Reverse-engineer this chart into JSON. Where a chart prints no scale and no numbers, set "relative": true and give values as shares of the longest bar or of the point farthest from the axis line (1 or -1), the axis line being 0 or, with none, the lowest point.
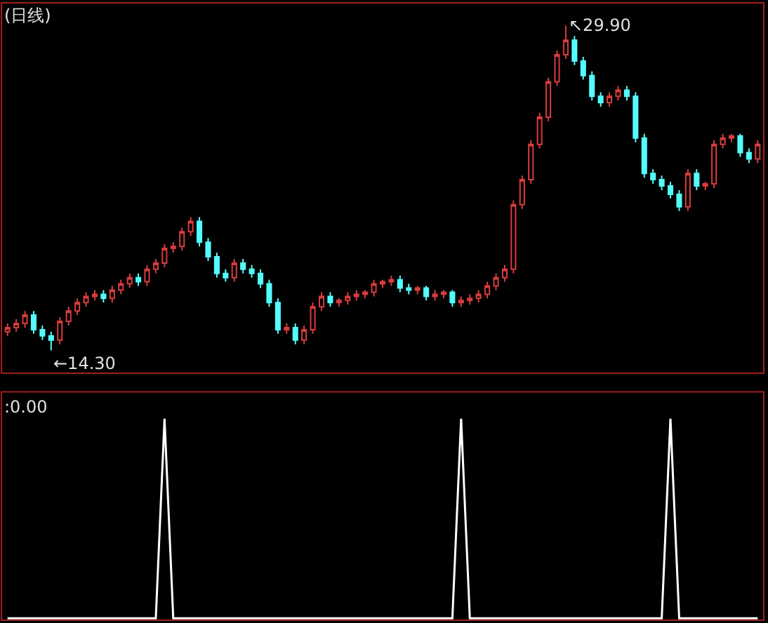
{
  "chart_data": [
    {
      "type": "candlestick",
      "title": "(日线)",
      "categories": [
        null,
        null,
        null,
        null,
        null,
        null,
        null,
        null,
        null,
        null,
        null,
        null,
        null,
        null,
        null,
        null,
        null,
        null,
        null,
        null,
        null,
        null,
        null,
        null,
        null,
        null,
        null,
        null,
        null,
        null,
        null,
        null,
        null,
        null,
        null,
        null,
        null,
        null,
        null,
        null,
        null,
        null,
        null,
        null,
        null,
        null,
        null,
        null,
        null,
        null,
        null,
        null,
        null,
        null,
        null,
        null,
        null,
        null,
        null,
        null,
        null,
        null,
        null,
        null,
        null,
        null,
        null,
        null,
        null,
        null,
        null,
        null,
        null,
        null,
        null,
        null,
        null,
        null,
        null,
        null,
        null,
        null,
        null,
        null,
        null,
        null,
        null
      ],
      "ohlc": [
        [
          15.2,
          15.6,
          15.0,
          15.4
        ],
        [
          15.4,
          15.8,
          15.2,
          15.6
        ],
        [
          15.6,
          16.2,
          15.4,
          16.0
        ],
        [
          16.0,
          16.2,
          15.1,
          15.3
        ],
        [
          15.3,
          15.5,
          14.8,
          15.0
        ],
        [
          15.0,
          15.2,
          14.3,
          14.8
        ],
        [
          14.8,
          15.9,
          14.6,
          15.7
        ],
        [
          15.7,
          16.4,
          15.5,
          16.2
        ],
        [
          16.2,
          16.8,
          16.0,
          16.6
        ],
        [
          16.6,
          17.1,
          16.4,
          16.9
        ],
        [
          16.9,
          17.2,
          16.7,
          17.0
        ],
        [
          17.0,
          17.2,
          16.6,
          16.8
        ],
        [
          16.8,
          17.4,
          16.6,
          17.2
        ],
        [
          17.2,
          17.7,
          17.0,
          17.5
        ],
        [
          17.5,
          18.0,
          17.3,
          17.8
        ],
        [
          17.8,
          18.0,
          17.4,
          17.6
        ],
        [
          17.6,
          18.4,
          17.4,
          18.2
        ],
        [
          18.2,
          18.7,
          18.0,
          18.5
        ],
        [
          18.5,
          19.4,
          18.3,
          19.2
        ],
        [
          19.2,
          19.5,
          19.0,
          19.3
        ],
        [
          19.3,
          20.2,
          19.1,
          20.0
        ],
        [
          20.0,
          20.7,
          19.8,
          20.5
        ],
        [
          20.5,
          20.7,
          19.3,
          19.5
        ],
        [
          19.5,
          19.7,
          18.6,
          18.8
        ],
        [
          18.8,
          19.0,
          17.8,
          18.0
        ],
        [
          18.0,
          18.2,
          17.6,
          17.8
        ],
        [
          17.8,
          18.7,
          17.6,
          18.5
        ],
        [
          18.5,
          18.7,
          18.0,
          18.2
        ],
        [
          18.2,
          18.4,
          17.8,
          18.0
        ],
        [
          18.0,
          18.2,
          17.3,
          17.5
        ],
        [
          17.5,
          17.7,
          16.4,
          16.6
        ],
        [
          16.6,
          16.8,
          15.1,
          15.3
        ],
        [
          15.3,
          15.6,
          15.1,
          15.4
        ],
        [
          15.4,
          15.6,
          14.6,
          14.8
        ],
        [
          14.8,
          15.5,
          14.6,
          15.3
        ],
        [
          15.3,
          16.6,
          15.1,
          16.4
        ],
        [
          16.4,
          17.1,
          16.2,
          16.9
        ],
        [
          16.9,
          17.1,
          16.4,
          16.6
        ],
        [
          16.6,
          16.8,
          16.4,
          16.7
        ],
        [
          16.7,
          17.1,
          16.5,
          16.9
        ],
        [
          16.9,
          17.2,
          16.7,
          17.0
        ],
        [
          17.0,
          17.2,
          16.8,
          17.1
        ],
        [
          17.1,
          17.7,
          16.9,
          17.5
        ],
        [
          17.5,
          17.7,
          17.3,
          17.6
        ],
        [
          17.6,
          17.9,
          17.4,
          17.7
        ],
        [
          17.7,
          17.9,
          17.1,
          17.3
        ],
        [
          17.3,
          17.5,
          17.0,
          17.2
        ],
        [
          17.2,
          17.4,
          17.0,
          17.3
        ],
        [
          17.3,
          17.4,
          16.7,
          16.9
        ],
        [
          16.9,
          17.2,
          16.7,
          17.0
        ],
        [
          17.0,
          17.2,
          16.8,
          17.1
        ],
        [
          17.1,
          17.2,
          16.4,
          16.6
        ],
        [
          16.6,
          16.9,
          16.4,
          16.7
        ],
        [
          16.7,
          17.0,
          16.5,
          16.8
        ],
        [
          16.8,
          17.2,
          16.6,
          17.0
        ],
        [
          17.0,
          17.6,
          16.8,
          17.4
        ],
        [
          17.4,
          18.0,
          17.2,
          17.8
        ],
        [
          17.8,
          18.4,
          17.6,
          18.2
        ],
        [
          18.2,
          21.5,
          18.0,
          21.3
        ],
        [
          21.3,
          22.7,
          21.1,
          22.5
        ],
        [
          22.5,
          24.4,
          22.3,
          24.2
        ],
        [
          24.2,
          25.7,
          24.0,
          25.5
        ],
        [
          25.5,
          27.4,
          25.3,
          27.2
        ],
        [
          27.2,
          28.7,
          27.0,
          28.5
        ],
        [
          28.5,
          29.9,
          28.3,
          29.2
        ],
        [
          29.2,
          29.4,
          28.0,
          28.2
        ],
        [
          28.2,
          28.4,
          27.3,
          27.5
        ],
        [
          27.5,
          27.7,
          26.3,
          26.5
        ],
        [
          26.5,
          26.7,
          26.0,
          26.2
        ],
        [
          26.2,
          26.7,
          26.0,
          26.5
        ],
        [
          26.5,
          27.0,
          26.3,
          26.8
        ],
        [
          26.8,
          27.0,
          26.3,
          26.5
        ],
        [
          26.5,
          26.7,
          24.3,
          24.5
        ],
        [
          24.5,
          24.7,
          22.6,
          22.8
        ],
        [
          22.8,
          23.0,
          22.3,
          22.5
        ],
        [
          22.5,
          22.7,
          22.0,
          22.2
        ],
        [
          22.2,
          22.4,
          21.6,
          21.8
        ],
        [
          21.8,
          22.0,
          21.0,
          21.2
        ],
        [
          21.2,
          23.0,
          21.0,
          22.8
        ],
        [
          22.8,
          23.0,
          22.0,
          22.2
        ],
        [
          22.2,
          22.4,
          22.0,
          22.3
        ],
        [
          22.3,
          24.4,
          22.1,
          24.2
        ],
        [
          24.2,
          24.7,
          24.0,
          24.5
        ],
        [
          24.5,
          24.7,
          24.3,
          24.6
        ],
        [
          24.6,
          24.7,
          23.6,
          23.8
        ],
        [
          23.8,
          24.0,
          23.3,
          23.5
        ],
        [
          23.5,
          24.4,
          23.3,
          24.2
        ]
      ],
      "colors": [
        "#d83c3c",
        "#d83c3c",
        "#d83c3c",
        "#54fcfc",
        "#54fcfc",
        "#54fcfc",
        "#d83c3c",
        "#d83c3c",
        "#d83c3c",
        "#d83c3c",
        "#d83c3c",
        "#54fcfc",
        "#d83c3c",
        "#d83c3c",
        "#d83c3c",
        "#54fcfc",
        "#d83c3c",
        "#d83c3c",
        "#d83c3c",
        "#d83c3c",
        "#d83c3c",
        "#d83c3c",
        "#54fcfc",
        "#54fcfc",
        "#54fcfc",
        "#54fcfc",
        "#d83c3c",
        "#54fcfc",
        "#54fcfc",
        "#54fcfc",
        "#54fcfc",
        "#54fcfc",
        "#d83c3c",
        "#54fcfc",
        "#d83c3c",
        "#d83c3c",
        "#d83c3c",
        "#54fcfc",
        "#d83c3c",
        "#d83c3c",
        "#d83c3c",
        "#d83c3c",
        "#d83c3c",
        "#d83c3c",
        "#d83c3c",
        "#54fcfc",
        "#54fcfc",
        "#d83c3c",
        "#54fcfc",
        "#d83c3c",
        "#d83c3c",
        "#54fcfc",
        "#d83c3c",
        "#d83c3c",
        "#d83c3c",
        "#d83c3c",
        "#d83c3c",
        "#d83c3c",
        "#d83c3c",
        "#d83c3c",
        "#d83c3c",
        "#d83c3c",
        "#d83c3c",
        "#d83c3c",
        "#d83c3c",
        "#54fcfc",
        "#54fcfc",
        "#54fcfc",
        "#54fcfc",
        "#d83c3c",
        "#d83c3c",
        "#54fcfc",
        "#54fcfc",
        "#54fcfc",
        "#54fcfc",
        "#54fcfc",
        "#54fcfc",
        "#54fcfc",
        "#d83c3c",
        "#54fcfc",
        "#d83c3c",
        "#d83c3c",
        "#d83c3c",
        "#d83c3c",
        "#54fcfc",
        "#54fcfc",
        "#d83c3c"
      ],
      "annotations": [
        "←14.30",
        "↖29.90"
      ],
      "tick_labels": false
    },
    {
      "type": "line",
      "title": ":0.00",
      "relative": true,
      "color": "#ffffff",
      "categories": [
        null,
        null,
        null,
        null,
        null,
        null,
        null,
        null,
        null,
        null,
        null,
        null,
        null,
        null,
        null,
        null,
        null,
        null,
        null,
        null,
        null,
        null,
        null,
        null,
        null,
        null,
        null,
        null,
        null,
        null,
        null,
        null,
        null,
        null,
        null,
        null,
        null,
        null,
        null,
        null,
        null,
        null,
        null,
        null,
        null,
        null,
        null,
        null,
        null,
        null,
        null,
        null,
        null,
        null,
        null,
        null,
        null,
        null,
        null,
        null,
        null,
        null,
        null,
        null,
        null,
        null,
        null,
        null,
        null,
        null,
        null,
        null,
        null,
        null,
        null,
        null,
        null,
        null,
        null,
        null,
        null,
        null,
        null,
        null,
        null,
        null,
        null
      ],
      "values": [
        0,
        0,
        0,
        0,
        0,
        0,
        0,
        0,
        0,
        0,
        0,
        0,
        0,
        0,
        0,
        0,
        0,
        0,
        1,
        0,
        0,
        0,
        0,
        0,
        0,
        0,
        0,
        0,
        0,
        0,
        0,
        0,
        0,
        0,
        0,
        0,
        0,
        0,
        0,
        0,
        0,
        0,
        0,
        0,
        0,
        0,
        0,
        0,
        0,
        0,
        0,
        0,
        1,
        0,
        0,
        0,
        0,
        0,
        0,
        0,
        0,
        0,
        0,
        0,
        0,
        0,
        0,
        0,
        0,
        0,
        0,
        0,
        0,
        0,
        0,
        0,
        1,
        0,
        0,
        0,
        0,
        0,
        0,
        0,
        0,
        0,
        0
      ]
    }
  ]
}
